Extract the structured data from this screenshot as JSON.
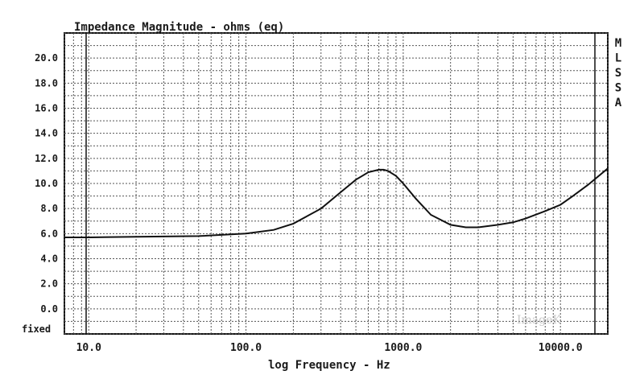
{
  "chart_data": {
    "type": "line",
    "title": "Impedance Magnitude - ohms (eq)",
    "xlabel": "log Frequency - Hz",
    "x_scale": "log",
    "xlim": [
      7,
      20000
    ],
    "ylim": [
      -2,
      22
    ],
    "x_tick_labels": [
      "10.0",
      "100.0",
      "1000.0",
      "10000.0"
    ],
    "y_tick_labels": [
      "20.0",
      "18.0",
      "16.0",
      "14.0",
      "12.0",
      "10.0",
      "8.0",
      "6.0",
      "4.0",
      "2.0",
      "0.0"
    ],
    "y_bottom_label": "fixed",
    "side_label": [
      "M",
      "L",
      "S",
      "S",
      "A"
    ],
    "grid": true,
    "series": [
      {
        "x": [
          7,
          10,
          20,
          50,
          100,
          150,
          200,
          300,
          400,
          500,
          600,
          700,
          750,
          800,
          900,
          1000,
          1200,
          1500,
          2000,
          2500,
          3000,
          4000,
          5000,
          6000,
          8000,
          10000,
          12000,
          15000,
          20000
        ],
        "y": [
          5.7,
          5.7,
          5.75,
          5.8,
          6.0,
          6.3,
          6.8,
          8.0,
          9.3,
          10.3,
          10.9,
          11.1,
          11.1,
          11.0,
          10.6,
          10.0,
          8.8,
          7.5,
          6.7,
          6.5,
          6.5,
          6.7,
          6.9,
          7.2,
          7.8,
          8.3,
          9.0,
          9.9,
          11.2
        ]
      }
    ]
  },
  "watermark": "ImageK"
}
